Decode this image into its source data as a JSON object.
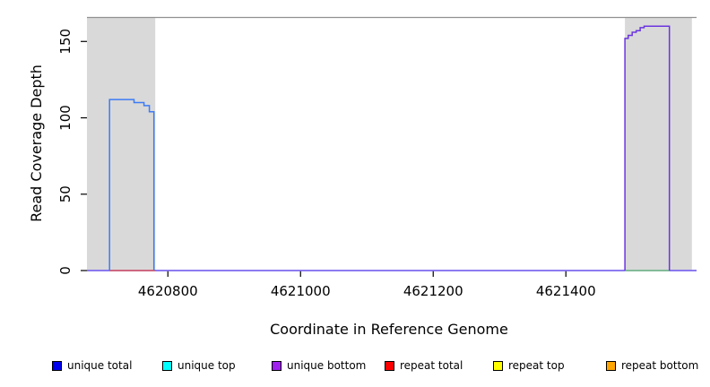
{
  "figure": {
    "xlabel": "Coordinate in Reference Genome",
    "ylabel": "Read Coverage Depth"
  },
  "chart_data": {
    "type": "line",
    "subtype": "step-coverage-plot",
    "title": "",
    "xlabel": "Coordinate in Reference Genome",
    "ylabel": "Read Coverage Depth",
    "xlim": [
      4620678,
      4621597
    ],
    "ylim": [
      0,
      166
    ],
    "x_ticks": [
      4620800,
      4621000,
      4621200,
      4621400
    ],
    "y_ticks": [
      0,
      50,
      100,
      150
    ],
    "grid": false,
    "colors": {
      "highlight_fill": "#d9d9d9",
      "plot_top_border": "#919191",
      "axis": "#000000"
    },
    "highlight_regions": [
      {
        "name": "left-gray-region",
        "start": 4620678,
        "end": 4620781,
        "fill": "#d9d9d9"
      },
      {
        "name": "right-gray-region",
        "start": 4621489,
        "end": 4621590,
        "fill": "#d9d9d9"
      }
    ],
    "series": [
      {
        "name": "baseline-all",
        "color": "#7b68ee",
        "width": 1.8,
        "points": [
          [
            4620678,
            0
          ],
          [
            4621597,
            0
          ]
        ]
      },
      {
        "name": "repeat-total",
        "color": "#e05c5c",
        "width": 1.6,
        "points": [
          [
            4620712,
            0
          ],
          [
            4620781,
            0
          ]
        ]
      },
      {
        "name": "baseline-segment-green",
        "color": "#7ccc7c",
        "width": 1.6,
        "points": [
          [
            4621489,
            0
          ],
          [
            4621556,
            0
          ]
        ]
      },
      {
        "name": "unique-total",
        "color": "#3c7bf5",
        "width": 1.5,
        "points": [
          [
            4620712,
            0
          ],
          [
            4620712,
            112
          ],
          [
            4620749,
            112
          ],
          [
            4620749,
            110
          ],
          [
            4620764,
            110
          ],
          [
            4620764,
            108
          ],
          [
            4620772,
            108
          ],
          [
            4620772,
            104
          ],
          [
            4620779,
            104
          ],
          [
            4620779,
            0
          ]
        ]
      },
      {
        "name": "unique-bottom",
        "color": "#6a35e0",
        "width": 1.5,
        "points": [
          [
            4621489,
            0
          ],
          [
            4621489,
            152
          ],
          [
            4621494,
            152
          ],
          [
            4621494,
            154
          ],
          [
            4621500,
            154
          ],
          [
            4621500,
            156
          ],
          [
            4621506,
            156
          ],
          [
            4621506,
            157
          ],
          [
            4621512,
            157
          ],
          [
            4621512,
            159
          ],
          [
            4621518,
            159
          ],
          [
            4621518,
            160
          ],
          [
            4621556,
            160
          ],
          [
            4621556,
            0
          ]
        ]
      }
    ],
    "legend": {
      "position": "bottom",
      "items": [
        {
          "label": "unique total",
          "color": "#0000ee"
        },
        {
          "label": "unique top",
          "color": "#00ffff"
        },
        {
          "label": "unique bottom",
          "color": "#a020f0"
        },
        {
          "label": "repeat total",
          "color": "#ff0000"
        },
        {
          "label": "repeat top",
          "color": "#ffff00"
        },
        {
          "label": "repeat bottom",
          "color": "#ffa500"
        }
      ]
    }
  }
}
